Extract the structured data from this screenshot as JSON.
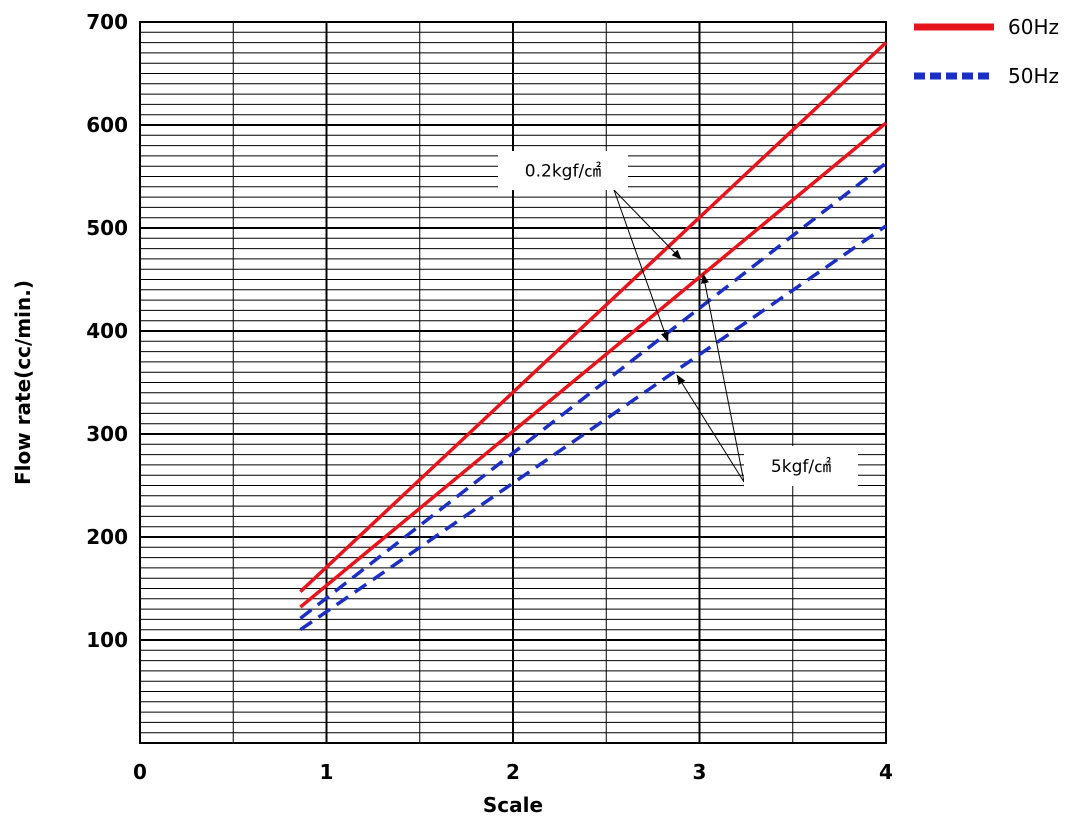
{
  "chart_data": {
    "type": "line",
    "title": "",
    "xlabel": "Scale",
    "ylabel": "Flow rate(cc/min.)",
    "xlim": [
      0,
      4
    ],
    "ylim": [
      0,
      700
    ],
    "x_ticks": [
      "0",
      "1",
      "2",
      "3",
      "4"
    ],
    "y_ticks": [
      "100",
      "200",
      "300",
      "400",
      "500",
      "600",
      "700"
    ],
    "grid": true,
    "legend_position": "top-right",
    "legend": [
      {
        "label": "60Hz",
        "color": "#e8141b",
        "style": "solid"
      },
      {
        "label": "50Hz",
        "color": "#1c2fc4",
        "style": "dashed"
      }
    ],
    "series": [
      {
        "legend": "60Hz",
        "pressure": "0.2kgf/㎠",
        "color": "#e8141b",
        "style": "solid",
        "points": [
          [
            0.86,
            147
          ],
          [
            4.0,
            680
          ]
        ]
      },
      {
        "legend": "60Hz",
        "pressure": "5kgf/㎠",
        "color": "#e8141b",
        "style": "solid",
        "points": [
          [
            0.86,
            132
          ],
          [
            4.0,
            602
          ]
        ]
      },
      {
        "legend": "50Hz",
        "pressure": "0.2kgf/㎠",
        "color": "#1c2fc4",
        "style": "dashed",
        "points": [
          [
            0.86,
            121
          ],
          [
            4.0,
            563
          ]
        ]
      },
      {
        "legend": "50Hz",
        "pressure": "5kgf/㎠",
        "color": "#1c2fc4",
        "style": "dashed",
        "points": [
          [
            0.86,
            110
          ],
          [
            4.0,
            502
          ]
        ]
      }
    ],
    "annotations": [
      {
        "text": "0.2kgf/㎠",
        "targets": [
          [
            2.9,
            470
          ],
          [
            2.83,
            390
          ]
        ]
      },
      {
        "text": "5kgf/㎠",
        "targets": [
          [
            3.02,
            455
          ],
          [
            2.88,
            357
          ]
        ]
      }
    ]
  }
}
